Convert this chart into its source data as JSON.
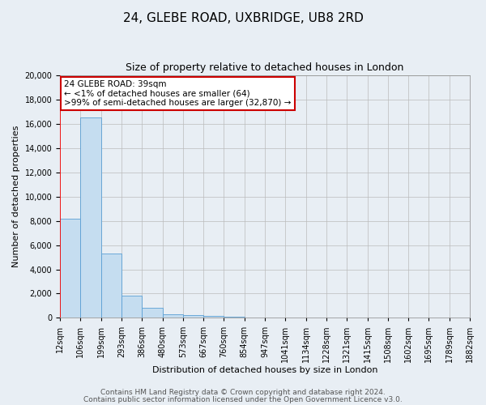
{
  "title": "24, GLEBE ROAD, UXBRIDGE, UB8 2RD",
  "subtitle": "Size of property relative to detached houses in London",
  "xlabel": "Distribution of detached houses by size in London",
  "ylabel": "Number of detached properties",
  "bar_values": [
    8200,
    16500,
    5300,
    1800,
    800,
    300,
    200,
    150,
    100,
    50,
    30,
    20,
    15,
    10,
    8,
    5,
    4,
    3,
    2,
    1
  ],
  "bin_labels": [
    "12sqm",
    "106sqm",
    "199sqm",
    "293sqm",
    "386sqm",
    "480sqm",
    "573sqm",
    "667sqm",
    "760sqm",
    "854sqm",
    "947sqm",
    "1041sqm",
    "1134sqm",
    "1228sqm",
    "1321sqm",
    "1415sqm",
    "1508sqm",
    "1602sqm",
    "1695sqm",
    "1789sqm",
    "1882sqm"
  ],
  "bar_color": "#c5ddf0",
  "bar_edge_color": "#5a9fd4",
  "annotation_box_text": "24 GLEBE ROAD: 39sqm\n← <1% of detached houses are smaller (64)\n>99% of semi-detached houses are larger (32,870) →",
  "annotation_box_color": "#ffffff",
  "annotation_box_edge_color": "#cc0000",
  "ylim": [
    0,
    20000
  ],
  "yticks": [
    0,
    2000,
    4000,
    6000,
    8000,
    10000,
    12000,
    14000,
    16000,
    18000,
    20000
  ],
  "footer_line1": "Contains HM Land Registry data © Crown copyright and database right 2024.",
  "footer_line2": "Contains public sector information licensed under the Open Government Licence v3.0.",
  "background_color": "#e8eef4",
  "plot_bg_color": "#e8eef4",
  "grid_color": "#bbbbbb",
  "title_fontsize": 11,
  "subtitle_fontsize": 9,
  "axis_label_fontsize": 8,
  "tick_fontsize": 7,
  "annotation_fontsize": 7.5,
  "footer_fontsize": 6.5
}
